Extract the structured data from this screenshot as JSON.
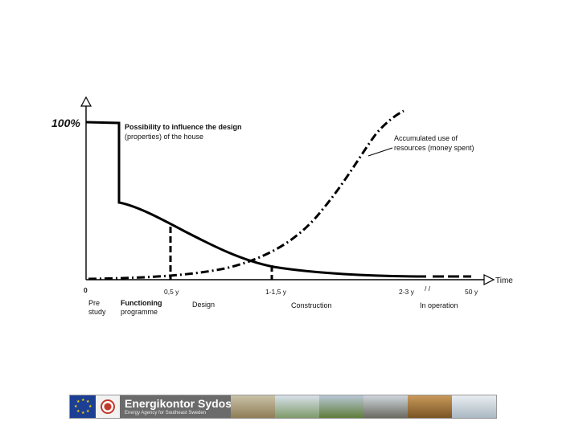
{
  "y_axis": {
    "top_label": "100%"
  },
  "x_axis": {
    "label": "Time",
    "ticks": [
      "0",
      "0,5 y",
      "1-1,5 y",
      "2-3 y",
      "50 y"
    ],
    "break_mark": "/ /"
  },
  "phases": {
    "pre_study": [
      "Pre",
      "study"
    ],
    "functioning_programme": [
      "Functioning",
      "programme"
    ],
    "design": "Design",
    "construction": "Construction",
    "in_operation": "In operation"
  },
  "curves": {
    "influence": [
      "Possibility to influence the design",
      "(properties) of the house"
    ],
    "resources": [
      "Accumulated use of",
      "resources (money spent)"
    ]
  },
  "footer": {
    "org_name": "Energikontor Sydost",
    "org_tagline": "Energy Agency for Southeast Sweden",
    "colors": {
      "eu_blue": "#1c3f94",
      "eu_gold": "#ffd700",
      "brand_grey": "#6b6b6b"
    }
  }
}
